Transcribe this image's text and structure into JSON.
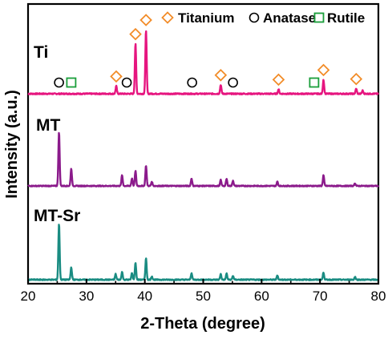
{
  "chart_data": {
    "type": "line",
    "xlabel": "2-Theta (degree)",
    "ylabel": "Intensity (a.u.)",
    "xlim": [
      20,
      80
    ],
    "xticks": [
      20,
      30,
      40,
      50,
      60,
      70,
      80
    ],
    "yticks_shown": false,
    "grid": false,
    "legend": {
      "placement": "top-right",
      "entries": [
        {
          "label": "Titanium",
          "marker": "diamond",
          "color": "#F28C28"
        },
        {
          "label": "Anatase",
          "marker": "circle",
          "color": "#000000"
        },
        {
          "label": "Rutile",
          "marker": "square",
          "color": "#1A9E3A"
        }
      ]
    },
    "series": [
      {
        "name": "Ti",
        "color": "#E6157F",
        "baseline": 0,
        "peaks": [
          {
            "x": 35.1,
            "h": 0.12
          },
          {
            "x": 38.4,
            "h": 0.78
          },
          {
            "x": 40.2,
            "h": 1.0
          },
          {
            "x": 53.0,
            "h": 0.14
          },
          {
            "x": 62.9,
            "h": 0.07
          },
          {
            "x": 70.6,
            "h": 0.22
          },
          {
            "x": 76.2,
            "h": 0.08
          },
          {
            "x": 77.3,
            "h": 0.05
          }
        ],
        "markers": [
          {
            "x": 25.3,
            "marker": "circle"
          },
          {
            "x": 27.4,
            "marker": "square"
          },
          {
            "x": 35.1,
            "marker": "diamond"
          },
          {
            "x": 36.9,
            "marker": "circle"
          },
          {
            "x": 38.4,
            "marker": "diamond"
          },
          {
            "x": 40.2,
            "marker": "diamond"
          },
          {
            "x": 48.1,
            "marker": "circle"
          },
          {
            "x": 53.0,
            "marker": "diamond"
          },
          {
            "x": 55.1,
            "marker": "circle"
          },
          {
            "x": 62.9,
            "marker": "diamond"
          },
          {
            "x": 69.0,
            "marker": "square"
          },
          {
            "x": 70.6,
            "marker": "diamond"
          },
          {
            "x": 76.2,
            "marker": "diamond"
          }
        ]
      },
      {
        "name": "MT",
        "color": "#8B1A8B",
        "baseline": 0,
        "peaks": [
          {
            "x": 25.3,
            "h": 1.0
          },
          {
            "x": 27.4,
            "h": 0.32
          },
          {
            "x": 36.1,
            "h": 0.2
          },
          {
            "x": 37.8,
            "h": 0.14
          },
          {
            "x": 38.4,
            "h": 0.28
          },
          {
            "x": 40.2,
            "h": 0.38
          },
          {
            "x": 41.2,
            "h": 0.08
          },
          {
            "x": 48.0,
            "h": 0.14
          },
          {
            "x": 53.0,
            "h": 0.11
          },
          {
            "x": 54.0,
            "h": 0.13
          },
          {
            "x": 55.1,
            "h": 0.1
          },
          {
            "x": 62.7,
            "h": 0.08
          },
          {
            "x": 70.6,
            "h": 0.2
          },
          {
            "x": 76.0,
            "h": 0.05
          }
        ]
      },
      {
        "name": "MT-Sr",
        "color": "#1A8C82",
        "baseline": 0,
        "peaks": [
          {
            "x": 25.3,
            "h": 1.0
          },
          {
            "x": 27.4,
            "h": 0.22
          },
          {
            "x": 35.0,
            "h": 0.1
          },
          {
            "x": 36.1,
            "h": 0.14
          },
          {
            "x": 37.8,
            "h": 0.12
          },
          {
            "x": 38.4,
            "h": 0.3
          },
          {
            "x": 40.2,
            "h": 0.38
          },
          {
            "x": 41.2,
            "h": 0.06
          },
          {
            "x": 48.0,
            "h": 0.12
          },
          {
            "x": 53.0,
            "h": 0.1
          },
          {
            "x": 54.0,
            "h": 0.11
          },
          {
            "x": 55.1,
            "h": 0.07
          },
          {
            "x": 62.7,
            "h": 0.08
          },
          {
            "x": 70.6,
            "h": 0.13
          },
          {
            "x": 76.0,
            "h": 0.05
          }
        ]
      }
    ]
  }
}
